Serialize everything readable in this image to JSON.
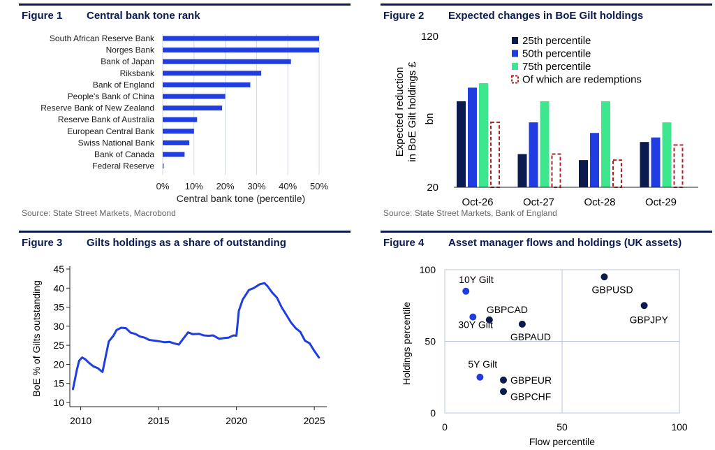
{
  "colors": {
    "heading": "#0b1a4f",
    "series_dark": "#0b1a4f",
    "series_blue": "#1f3de0",
    "series_green": "#3ee68e",
    "redemption": "#b22222",
    "grid": "#cfd8ea"
  },
  "fig1": {
    "number": "Figure 1",
    "title": "Central bank tone rank",
    "source": "Source: State Street Markets, Macrobond",
    "chart_data": {
      "type": "bar",
      "orientation": "horizontal",
      "categories": [
        "South African Reserve Bank",
        "Norges Bank",
        "Bank of Japan",
        "Riksbank",
        "Bank of England",
        "People's Bank of China",
        "Reserve Bank of New Zealand",
        "Reserve Bank of Australia",
        "European Central Bank",
        "Swiss National Bank",
        "Bank of Canada",
        "Federal Reserve"
      ],
      "values": [
        50,
        50,
        41,
        31.5,
        28,
        20,
        19,
        11,
        10,
        8.5,
        7,
        0.3
      ],
      "xlabel": "Central bank tone (percentile)",
      "xticks": [
        "0%",
        "10%",
        "20%",
        "30%",
        "40%",
        "50%"
      ],
      "xlim": [
        0,
        50
      ],
      "grid": "vertical"
    }
  },
  "fig2": {
    "number": "Figure 2",
    "title": "Expected changes in BoE Gilt holdings",
    "source": "Source: State Street Markets, Bank of England",
    "chart_data": {
      "type": "bar",
      "categories": [
        "Oct-26",
        "Oct-27",
        "Oct-28",
        "Oct-29"
      ],
      "series": [
        {
          "name": "25th percentile",
          "values": [
            77,
            42,
            38,
            50
          ]
        },
        {
          "name": "50th percentile",
          "values": [
            86,
            63,
            56,
            53
          ]
        },
        {
          "name": "75th percentile",
          "values": [
            89,
            77,
            77,
            63
          ]
        },
        {
          "name": "Of which are redemptions",
          "values": [
            63,
            42,
            38,
            48
          ]
        }
      ],
      "ylabel_lines": [
        "Expected reduction",
        "in BoE Gilt holdings £"
      ],
      "ylabel_unit": "bn",
      "yticks": [
        "20",
        "120"
      ],
      "ylim": [
        20,
        120
      ],
      "legend": "top-right"
    }
  },
  "fig3": {
    "number": "Figure 3",
    "title": "Gilts holdings as a share of outstanding",
    "chart_data": {
      "type": "line",
      "ylabel": "BoE % of Gilts outstanding",
      "ylim": [
        10,
        45
      ],
      "yticks": [
        "10",
        "15",
        "20",
        "25",
        "30",
        "35",
        "40",
        "45"
      ],
      "xticks": [
        "2010",
        "2015",
        "2020",
        "2025"
      ],
      "xlim": [
        2009.3,
        2025.8
      ],
      "series": [
        {
          "x": [
            2009.5,
            2009.75,
            2009.9,
            2010.1,
            2010.3,
            2010.5,
            2010.8,
            2011.1,
            2011.4,
            2011.8,
            2012.1,
            2012.3,
            2012.6,
            2012.9,
            2013.2,
            2013.5,
            2013.8,
            2014.1,
            2014.4,
            2014.8,
            2015.1,
            2015.4,
            2015.7,
            2016.0,
            2016.3,
            2016.6,
            2016.9,
            2017.2,
            2017.6,
            2017.9,
            2018.2,
            2018.5,
            2018.9,
            2019.2,
            2019.5,
            2019.8,
            2020.0,
            2020.15,
            2020.4,
            2020.8,
            2021.1,
            2021.5,
            2021.8,
            2022.0,
            2022.3,
            2022.6,
            2022.9,
            2023.2,
            2023.5,
            2023.8,
            2024.1,
            2024.4,
            2024.7,
            2025.0,
            2025.3
          ],
          "y": [
            13.5,
            18.5,
            21,
            21.8,
            21.3,
            20.5,
            19.5,
            19,
            18,
            26,
            27.5,
            29,
            29.6,
            29.5,
            28.3,
            28,
            27.3,
            27,
            26.4,
            26.2,
            26,
            25.8,
            25.9,
            25.5,
            25.2,
            26.8,
            28.4,
            27.9,
            28,
            27.6,
            27.5,
            27.6,
            26.7,
            26.9,
            27,
            27.6,
            27.5,
            34,
            37,
            39.5,
            40,
            41,
            41.3,
            40.5,
            38.8,
            37.5,
            35,
            33,
            31,
            29.5,
            28.5,
            26.2,
            25.5,
            23.5,
            21.8
          ]
        }
      ],
      "grid": "none"
    }
  },
  "fig4": {
    "number": "Figure 4",
    "title": "Asset manager flows and holdings (UK assets)",
    "chart_data": {
      "type": "scatter",
      "xlabel": "Flow percentile",
      "ylabel": "Holdings percentile",
      "xlim": [
        0,
        100
      ],
      "ylim": [
        0,
        100
      ],
      "xticks": [
        "0",
        "50",
        "100"
      ],
      "yticks": [
        "0",
        "50",
        "100"
      ],
      "grid": "quadrants",
      "points": [
        {
          "label": "10Y Gilt",
          "x": 9,
          "y": 85,
          "group": "gilt"
        },
        {
          "label": "30Y Gilt",
          "x": 12,
          "y": 67,
          "group": "gilt"
        },
        {
          "label": "5Y Gilt",
          "x": 15,
          "y": 25,
          "group": "gilt"
        },
        {
          "label": "GBPCAD",
          "x": 19,
          "y": 65,
          "group": "fx"
        },
        {
          "label": "GBPAUD",
          "x": 33,
          "y": 62,
          "group": "fx"
        },
        {
          "label": "GBPUSD",
          "x": 68,
          "y": 95,
          "group": "fx"
        },
        {
          "label": "GBPJPY",
          "x": 85,
          "y": 75,
          "group": "fx"
        },
        {
          "label": "GBPEUR",
          "x": 25,
          "y": 23,
          "group": "fx"
        },
        {
          "label": "GBPCHF",
          "x": 25,
          "y": 15,
          "group": "fx"
        }
      ]
    }
  }
}
